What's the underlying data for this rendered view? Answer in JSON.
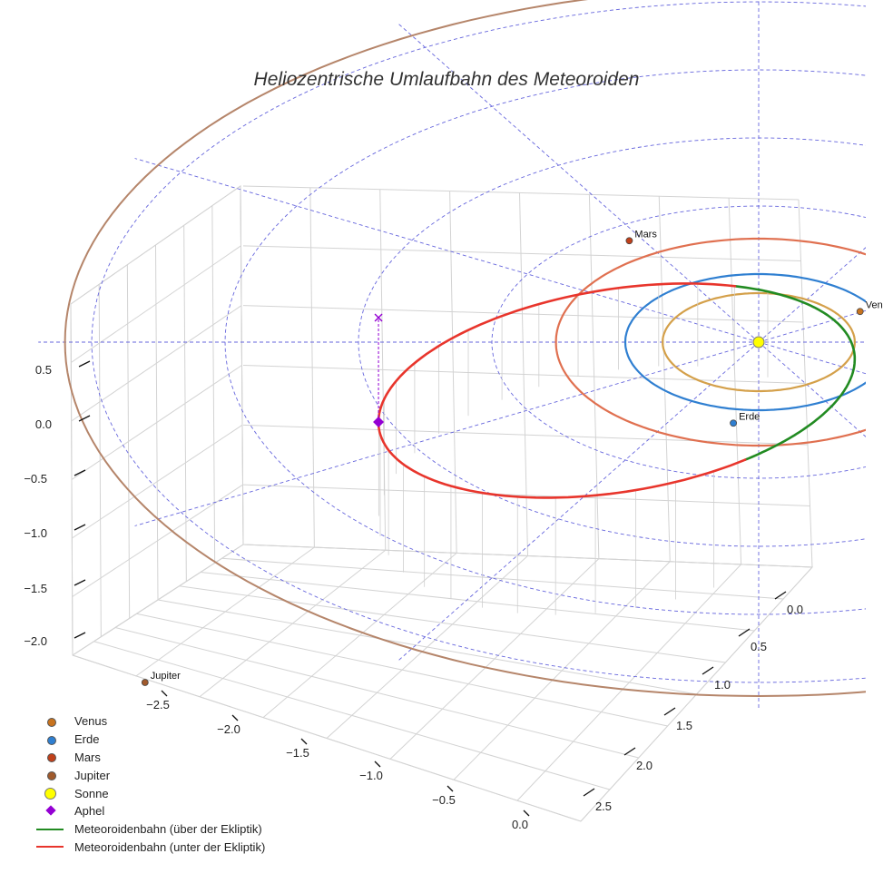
{
  "chart_data": {
    "type": "line3d",
    "title": "Heliozentrische Umlaufbahn des Meteoroiden",
    "axes": {
      "x_ticks": [
        "−2.5",
        "−2.0",
        "−1.5",
        "−1.0",
        "−0.5",
        "0.0"
      ],
      "y_ticks": [
        "0.0",
        "0.5",
        "1.0",
        "1.5",
        "2.0",
        "2.5"
      ],
      "z_ticks": [
        "0.5",
        "0.0",
        "−0.5",
        "−1.0",
        "−1.5",
        "−2.0"
      ],
      "xlim": [
        -3.0,
        0.2
      ],
      "ylim": [
        -0.2,
        2.8
      ],
      "zlim": [
        -2.3,
        0.8
      ],
      "grid": true
    },
    "planets": [
      {
        "name": "Venus",
        "label": "Ven",
        "orbit_radius_au": 0.72,
        "color": "#d4a04a",
        "marker_color": "#c8731e"
      },
      {
        "name": "Erde",
        "label": "Erde",
        "orbit_radius_au": 1.0,
        "color": "#2f7fd1",
        "marker_color": "#2f7fd1"
      },
      {
        "name": "Mars",
        "label": "Mars",
        "orbit_radius_au": 1.52,
        "color": "#e07050",
        "marker_color": "#c0401a"
      },
      {
        "name": "Jupiter",
        "label": "Jupiter",
        "orbit_radius_au": 5.2,
        "color": "#b5856a",
        "marker_color": "#a05a2c"
      }
    ],
    "sun": {
      "name": "Sonne",
      "color": "#ffff00"
    },
    "aphel": {
      "name": "Aphel",
      "color": "#9400d3",
      "distance_au": 2.85
    },
    "meteoroid_orbit": {
      "perihelion_au": 0.72,
      "aphelion_au": 2.85,
      "series": [
        {
          "name": "Meteoroidenbahn (über der Ekliptik)",
          "color": "#228b22"
        },
        {
          "name": "Meteoroidenbahn (unter der Ekliptik)",
          "color": "#e8352c"
        }
      ]
    },
    "reference_grid_color": "#6666dd",
    "legend": [
      {
        "label": "Venus",
        "kind": "dot",
        "color": "#c8731e"
      },
      {
        "label": "Erde",
        "kind": "dot",
        "color": "#2f7fd1"
      },
      {
        "label": "Mars",
        "kind": "dot",
        "color": "#c0401a"
      },
      {
        "label": "Jupiter",
        "kind": "dot",
        "color": "#a05a2c"
      },
      {
        "label": "Sonne",
        "kind": "sun",
        "color": "#ffff00"
      },
      {
        "label": "Aphel",
        "kind": "diamond",
        "color": "#9400d3"
      },
      {
        "label": "Meteoroidenbahn (über der Ekliptik)",
        "kind": "line",
        "color": "#228b22"
      },
      {
        "label": "Meteoroidenbahn (unter der Ekliptik)",
        "kind": "line",
        "color": "#e8352c"
      }
    ],
    "legend_position": "bottom-left"
  }
}
